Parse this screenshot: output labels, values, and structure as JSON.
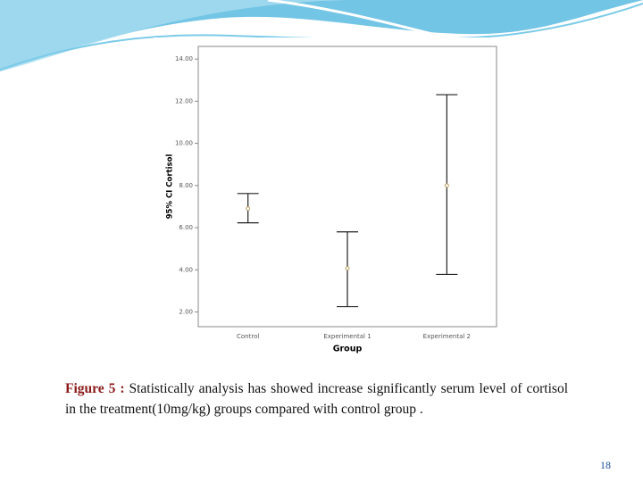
{
  "chart_data": {
    "type": "errorbar",
    "x_label": "Group",
    "y_label": "95% CI Cortisol",
    "categories": [
      "Control",
      "Experimental 1",
      "Experimental 2"
    ],
    "values": [
      6.9,
      4.07,
      8.0
    ],
    "lower": [
      6.23,
      2.25,
      3.78
    ],
    "upper": [
      7.62,
      5.8,
      12.31
    ],
    "color": "#222222",
    "marker_color": "#b8a060",
    "ylim": [
      1.3,
      14.6
    ],
    "yticks": [
      {
        "value": 2,
        "label": "2.00"
      },
      {
        "value": 4,
        "label": "4.00"
      },
      {
        "value": 6,
        "label": "6.00"
      },
      {
        "value": 8,
        "label": "8.00"
      },
      {
        "value": 10,
        "label": "10.00"
      },
      {
        "value": 12,
        "label": "12.00"
      },
      {
        "value": 14,
        "label": "14.00"
      }
    ]
  },
  "caption": {
    "label": "Figure 5 :",
    "text": "Statistically analysis has showed increase significantly serum level of cortisol in the treatment(10mg/kg) groups compared with control group ."
  },
  "page_number": "18"
}
